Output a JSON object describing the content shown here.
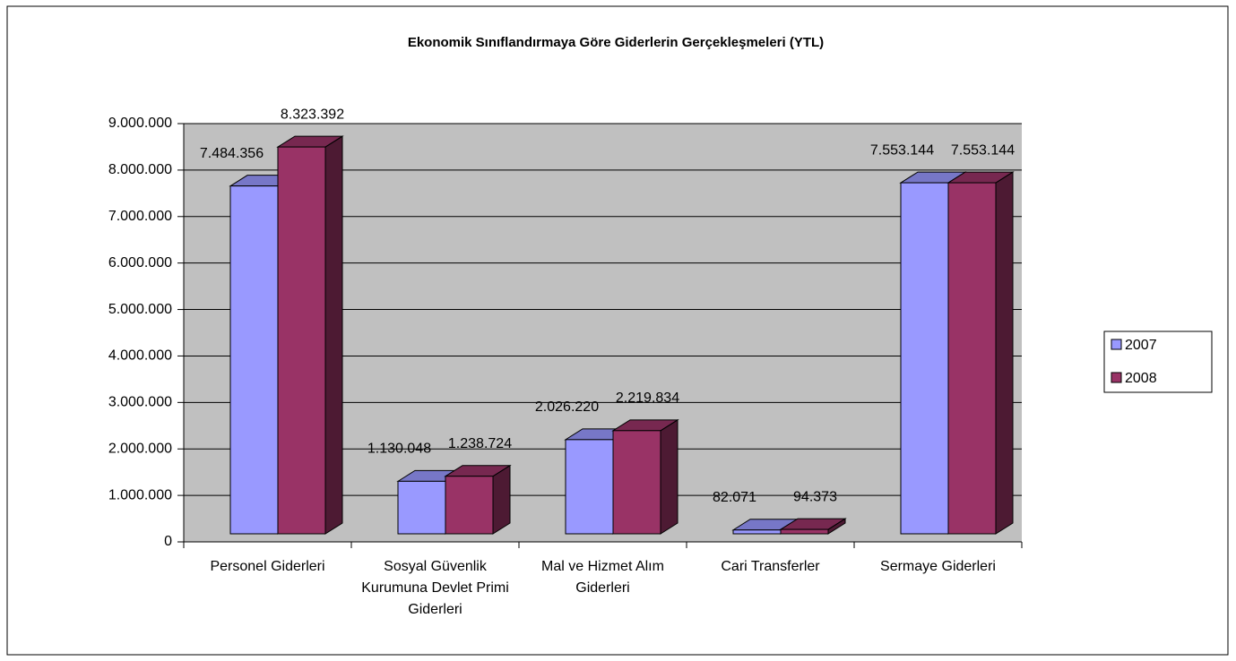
{
  "chart_data": {
    "type": "bar3d",
    "title": "Ekonomik Sınıflandırmaya Göre Giderlerin Gerçekleşmeleri (YTL)",
    "categories": [
      "Personel Giderleri",
      "Sosyal Güvenlik Kurumuna Devlet Primi Giderleri",
      "Mal ve Hizmet Alım Giderleri",
      "Cari Transferler",
      "Sermaye Giderleri"
    ],
    "series": [
      {
        "name": "2007",
        "color": "#9999ff",
        "values": [
          7484356,
          1130048,
          2026220,
          82071,
          7553144
        ],
        "value_labels": [
          "7.484.356",
          "1.130.048",
          "2.026.220",
          "82.071",
          "7.553.144"
        ]
      },
      {
        "name": "2008",
        "color": "#993366",
        "values": [
          8323392,
          1238724,
          2219834,
          94373,
          7553144
        ],
        "value_labels": [
          "8.323.392",
          "1.238.724",
          "2.219.834",
          "94.373",
          "7.553.144"
        ]
      }
    ],
    "ylim": [
      0,
      9000000
    ],
    "yticks": [
      0,
      {
        "value": 1000000,
        "label": "1.000.000"
      },
      {
        "value": 2000000,
        "label": "2.000.000"
      },
      {
        "value": 3000000,
        "label": "3.000.000"
      },
      {
        "value": 4000000,
        "label": "4.000.000"
      },
      {
        "value": 5000000,
        "label": "5.000.000"
      },
      {
        "value": 6000000,
        "label": "6.000.000"
      },
      {
        "value": 7000000,
        "label": "7.000.000"
      },
      {
        "value": 8000000,
        "label": "8.000.000"
      },
      {
        "value": 9000000,
        "label": "9.000.000"
      }
    ],
    "grid": true,
    "legend": "right"
  }
}
